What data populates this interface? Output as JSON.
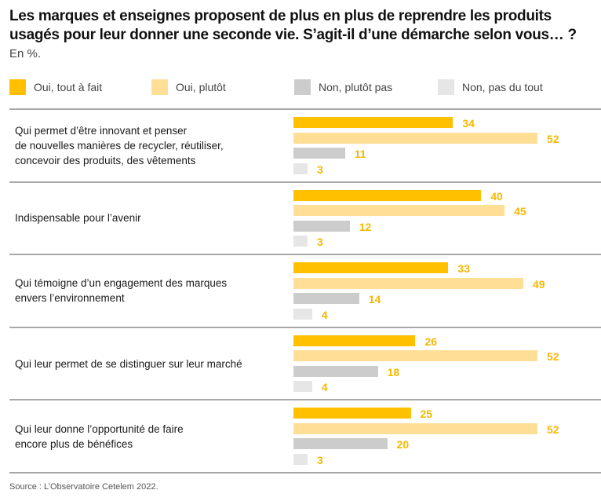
{
  "chart_data": {
    "type": "bar",
    "orientation": "horizontal",
    "title": "Les marques et enseignes proposent de plus en plus de reprendre les produits usagés pour leur donner une seconde vie. S’agit-il d’une démarche selon vous… ?",
    "subtitle": "En %.",
    "xlabel": "",
    "ylabel": "",
    "xlim": [
      0,
      100
    ],
    "grid": false,
    "legend_position": "top",
    "categories": [
      "Qui permet d’être innovant et penser\nde nouvelles manières de recycler, réutiliser,\nconcevoir des produits, des vêtements",
      "Indispensable pour l’avenir",
      "Qui témoigne d’un engagement des marques\nenvers l’environnement",
      "Qui leur permet de se distinguer sur leur marché",
      "Qui leur donne l’opportunité de faire\nencore plus de bénéfices"
    ],
    "series": [
      {
        "name": "Oui, tout à fait",
        "color": "#ffc000",
        "values": [
          34,
          40,
          33,
          26,
          25
        ]
      },
      {
        "name": "Oui, plutôt",
        "color": "#ffdf96",
        "values": [
          52,
          45,
          49,
          52,
          52
        ]
      },
      {
        "name": "Non, plutôt pas",
        "color": "#cccccc",
        "values": [
          11,
          12,
          14,
          18,
          20
        ]
      },
      {
        "name": "Non, pas du tout",
        "color": "#e6e6e6",
        "values": [
          3,
          3,
          4,
          4,
          3
        ]
      }
    ],
    "value_label_color": "#f5b800",
    "source": "Source : L’Observatoire Cetelem 2022."
  }
}
